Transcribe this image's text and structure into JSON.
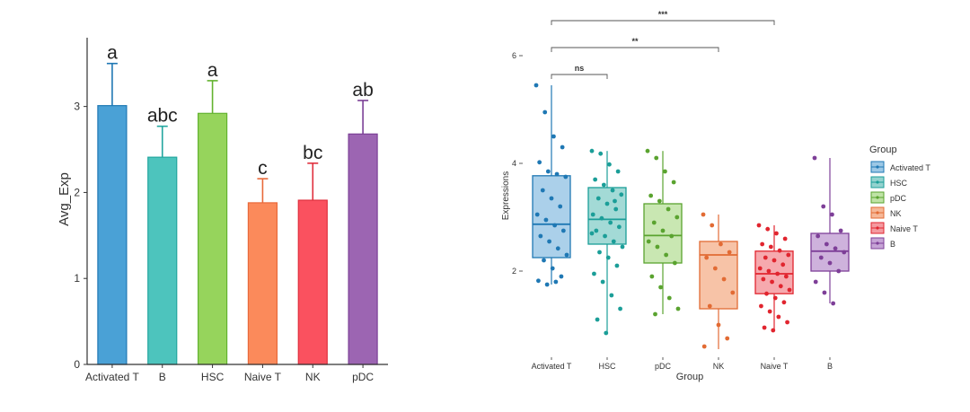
{
  "chart_data": [
    {
      "type": "bar",
      "title": "",
      "xlabel": "",
      "ylabel": "Avg_Exp",
      "ylim": [
        0,
        3.8
      ],
      "yticks": [
        0,
        1,
        2,
        3
      ],
      "grid": false,
      "categories": [
        "Activated T",
        "B",
        "HSC",
        "Naive T",
        "NK",
        "pDC"
      ],
      "values": [
        3.01,
        2.41,
        2.92,
        1.88,
        1.91,
        2.68
      ],
      "errors": [
        0.49,
        0.36,
        0.38,
        0.28,
        0.43,
        0.39
      ],
      "letters": [
        "a",
        "abc",
        "a",
        "c",
        "bc",
        "ab"
      ],
      "colors": [
        "#4aa1d6",
        "#4dc4bd",
        "#96d45c",
        "#fb8a5b",
        "#fa515f",
        "#9c65b2"
      ],
      "edge_colors": [
        "#1f78b4",
        "#23a69f",
        "#63b22f",
        "#e8693a",
        "#e0303e",
        "#7b3f96"
      ]
    },
    {
      "type": "box",
      "title": "",
      "xlabel": "Group",
      "ylabel": "Expressions",
      "ylim": [
        0.4,
        6.4
      ],
      "yticks": [
        2,
        4,
        6
      ],
      "grid": false,
      "legend_title": "Group",
      "legend_position": "right",
      "groups": [
        {
          "name": "Activated T",
          "color": "#1f78b4",
          "fill": "#9cc8e6",
          "min": 1.75,
          "q1": 2.25,
          "median": 2.87,
          "q3": 3.77,
          "max": 5.45,
          "points": [
            5.45,
            4.95,
            4.5,
            4.3,
            4.02,
            3.85,
            3.8,
            3.75,
            3.5,
            3.35,
            3.2,
            3.05,
            2.95,
            2.85,
            2.75,
            2.65,
            2.55,
            2.42,
            2.3,
            2.2,
            2.05,
            1.9,
            1.82,
            1.75,
            1.8
          ]
        },
        {
          "name": "HSC",
          "color": "#1b9e98",
          "fill": "#93d3cf",
          "min": 0.85,
          "q1": 2.5,
          "median": 2.96,
          "q3": 3.55,
          "max": 4.23,
          "points": [
            4.23,
            4.18,
            3.98,
            3.85,
            3.7,
            3.6,
            3.5,
            3.42,
            3.35,
            3.25,
            3.15,
            3.05,
            2.98,
            2.9,
            2.82,
            2.75,
            2.65,
            2.55,
            2.45,
            2.35,
            2.25,
            2.1,
            1.95,
            1.8,
            1.55,
            1.3,
            1.1,
            0.85,
            3.3,
            2.7
          ]
        },
        {
          "name": "pDC",
          "color": "#5aa32f",
          "fill": "#bfe3a5",
          "min": 1.2,
          "q1": 2.15,
          "median": 2.66,
          "q3": 3.25,
          "max": 4.23,
          "points": [
            4.23,
            4.1,
            3.85,
            3.65,
            3.4,
            3.3,
            3.15,
            3.0,
            2.9,
            2.75,
            2.65,
            2.55,
            2.45,
            2.3,
            2.15,
            1.9,
            1.7,
            1.5,
            1.3,
            1.2
          ]
        },
        {
          "name": "NK",
          "color": "#e26b34",
          "fill": "#f6b898",
          "min": 0.55,
          "q1": 1.3,
          "median": 2.3,
          "q3": 2.55,
          "max": 3.05,
          "points": [
            3.05,
            2.85,
            2.5,
            2.35,
            2.25,
            2.05,
            1.85,
            1.6,
            1.35,
            1.0,
            0.75,
            0.6
          ]
        },
        {
          "name": "Naive T",
          "color": "#e1252f",
          "fill": "#f49aa0",
          "min": 0.9,
          "q1": 1.58,
          "median": 1.95,
          "q3": 2.37,
          "max": 2.85,
          "points": [
            2.85,
            2.78,
            2.7,
            2.6,
            2.5,
            2.45,
            2.38,
            2.3,
            2.25,
            2.2,
            2.12,
            2.05,
            2.0,
            1.95,
            1.9,
            1.85,
            1.8,
            1.72,
            1.65,
            1.58,
            1.5,
            1.42,
            1.35,
            1.25,
            1.15,
            1.05,
            0.95,
            0.9
          ]
        },
        {
          "name": "B",
          "color": "#7e3f98",
          "fill": "#c6a4d6",
          "min": 1.4,
          "q1": 2.0,
          "median": 2.37,
          "q3": 2.7,
          "max": 4.1,
          "points": [
            4.1,
            3.2,
            3.05,
            2.75,
            2.65,
            2.5,
            2.42,
            2.35,
            2.25,
            2.15,
            2.0,
            1.8,
            1.6,
            1.4
          ]
        }
      ],
      "comparisons": [
        {
          "from": "Activated T",
          "to": "HSC",
          "y": 5.65,
          "label": "ns"
        },
        {
          "from": "Activated T",
          "to": "NK",
          "y": 6.15,
          "label": "**"
        },
        {
          "from": "Activated T",
          "to": "Naive T",
          "y": 6.65,
          "label": "***"
        }
      ]
    }
  ]
}
